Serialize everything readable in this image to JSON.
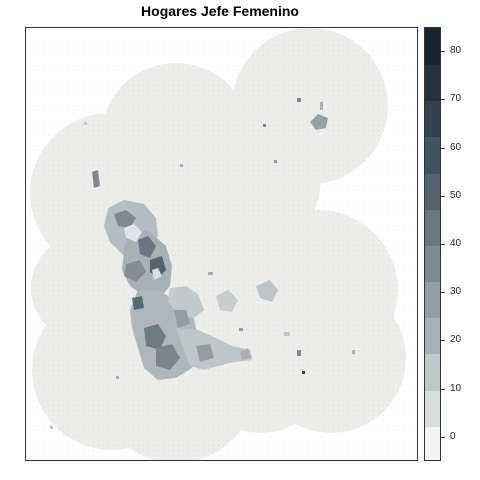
{
  "title": "Hogares Jefe Femenino",
  "legend": {
    "ticks": [
      "80",
      "70",
      "60",
      "50",
      "40",
      "30",
      "20",
      "10",
      "0"
    ],
    "tick_values": [
      80,
      70,
      60,
      50,
      40,
      30,
      20,
      10,
      0
    ],
    "range": [
      -5,
      85
    ],
    "band_colors": [
      "#f3f4f4",
      "#d9dcdd",
      "#c2c7c9",
      "#aab1b5",
      "#949da2",
      "#7f8a90",
      "#6b767e",
      "#57636c",
      "#45525b",
      "#34414b",
      "#243240",
      "#172534"
    ]
  },
  "colors": {
    "background_area": "#ecedeb",
    "low": "#c4c9cb",
    "mid": "#98a1a6",
    "high": "#5c6872",
    "frame": "#333333"
  }
}
